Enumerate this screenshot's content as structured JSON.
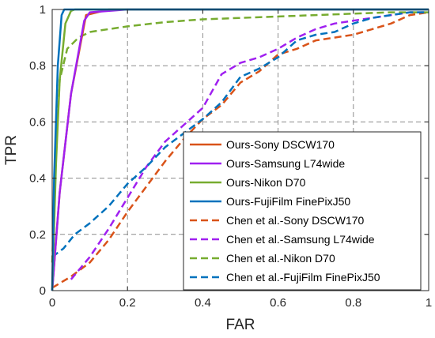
{
  "chart_data": {
    "type": "line",
    "title": "",
    "xlabel": "FAR",
    "ylabel": "TPR",
    "xlim": [
      0,
      1
    ],
    "ylim": [
      0,
      1
    ],
    "grid": true,
    "legend_position": "lower-right",
    "x_ticks": [
      "0",
      "0.2",
      "0.4",
      "0.6",
      "0.8",
      "1"
    ],
    "y_ticks": [
      "0",
      "0.2",
      "0.4",
      "0.6",
      "0.8",
      "1"
    ],
    "series": [
      {
        "name": "Ours-Sony DSCW170",
        "color": "#D95319",
        "dash": "solid",
        "x": [
          0,
          0.02,
          0.05,
          0.09,
          0.15,
          0.2,
          1
        ],
        "y": [
          0,
          0.35,
          0.7,
          0.98,
          1.0,
          1.0,
          1.0
        ]
      },
      {
        "name": "Ours-Samsung L74wide",
        "color": "#A020F0",
        "dash": "solid",
        "x": [
          0,
          0.02,
          0.05,
          0.085,
          0.1,
          0.2,
          1
        ],
        "y": [
          0,
          0.35,
          0.7,
          0.96,
          0.99,
          1.0,
          1.0
        ]
      },
      {
        "name": "Ours-Nikon D70",
        "color": "#77AC30",
        "dash": "solid",
        "x": [
          0,
          0.01,
          0.02,
          0.035,
          0.05,
          0.06,
          1
        ],
        "y": [
          0,
          0.45,
          0.75,
          0.95,
          0.995,
          1.0,
          1.0
        ]
      },
      {
        "name": "Ours-FujiFilm FinePixJ50",
        "color": "#0072BD",
        "dash": "solid",
        "x": [
          0,
          0.005,
          0.015,
          0.025,
          0.032,
          1
        ],
        "y": [
          0,
          0.4,
          0.8,
          0.98,
          1.0,
          1.0
        ]
      },
      {
        "name": "Chen et al.-Sony DSCW170",
        "color": "#D95319",
        "dash": "dashed",
        "x": [
          0,
          0.05,
          0.1,
          0.15,
          0.2,
          0.25,
          0.3,
          0.35,
          0.4,
          0.45,
          0.5,
          0.55,
          0.6,
          0.65,
          0.7,
          0.75,
          0.8,
          0.85,
          0.9,
          0.95,
          1.0
        ],
        "y": [
          0.01,
          0.05,
          0.1,
          0.18,
          0.28,
          0.37,
          0.46,
          0.54,
          0.61,
          0.66,
          0.74,
          0.78,
          0.84,
          0.86,
          0.89,
          0.9,
          0.91,
          0.93,
          0.95,
          0.98,
          0.99
        ]
      },
      {
        "name": "Chen et al.-Samsung L74wide",
        "color": "#A020F0",
        "dash": "dashed",
        "x": [
          0.05,
          0.1,
          0.15,
          0.2,
          0.25,
          0.3,
          0.35,
          0.4,
          0.45,
          0.5,
          0.55,
          0.6,
          0.65,
          0.7,
          0.75,
          0.8,
          0.85,
          0.9,
          0.95,
          1.0
        ],
        "y": [
          0.04,
          0.12,
          0.22,
          0.33,
          0.44,
          0.53,
          0.59,
          0.65,
          0.77,
          0.81,
          0.83,
          0.86,
          0.9,
          0.93,
          0.95,
          0.96,
          0.97,
          0.98,
          0.99,
          0.99
        ]
      },
      {
        "name": "Chen et al.-Nikon D70",
        "color": "#77AC30",
        "dash": "dashed",
        "x": [
          0,
          0.01,
          0.02,
          0.04,
          0.07,
          0.1,
          0.15,
          0.2,
          0.3,
          0.4,
          0.5,
          0.6,
          0.7,
          0.8,
          0.9,
          1.0
        ],
        "y": [
          0.1,
          0.5,
          0.75,
          0.86,
          0.9,
          0.92,
          0.93,
          0.94,
          0.955,
          0.965,
          0.97,
          0.975,
          0.98,
          0.985,
          0.99,
          0.99
        ]
      },
      {
        "name": "Chen et al.-FujiFilm FinePixJ50",
        "color": "#0072BD",
        "dash": "dashed",
        "x": [
          0,
          0.01,
          0.03,
          0.06,
          0.1,
          0.15,
          0.2,
          0.25,
          0.3,
          0.35,
          0.4,
          0.45,
          0.5,
          0.55,
          0.6,
          0.65,
          0.7,
          0.75,
          0.8,
          0.85,
          0.9,
          0.95,
          1.0
        ],
        "y": [
          0.12,
          0.13,
          0.15,
          0.2,
          0.24,
          0.3,
          0.38,
          0.44,
          0.51,
          0.56,
          0.61,
          0.67,
          0.76,
          0.79,
          0.83,
          0.89,
          0.91,
          0.92,
          0.95,
          0.97,
          0.98,
          0.99,
          0.99
        ]
      }
    ]
  }
}
